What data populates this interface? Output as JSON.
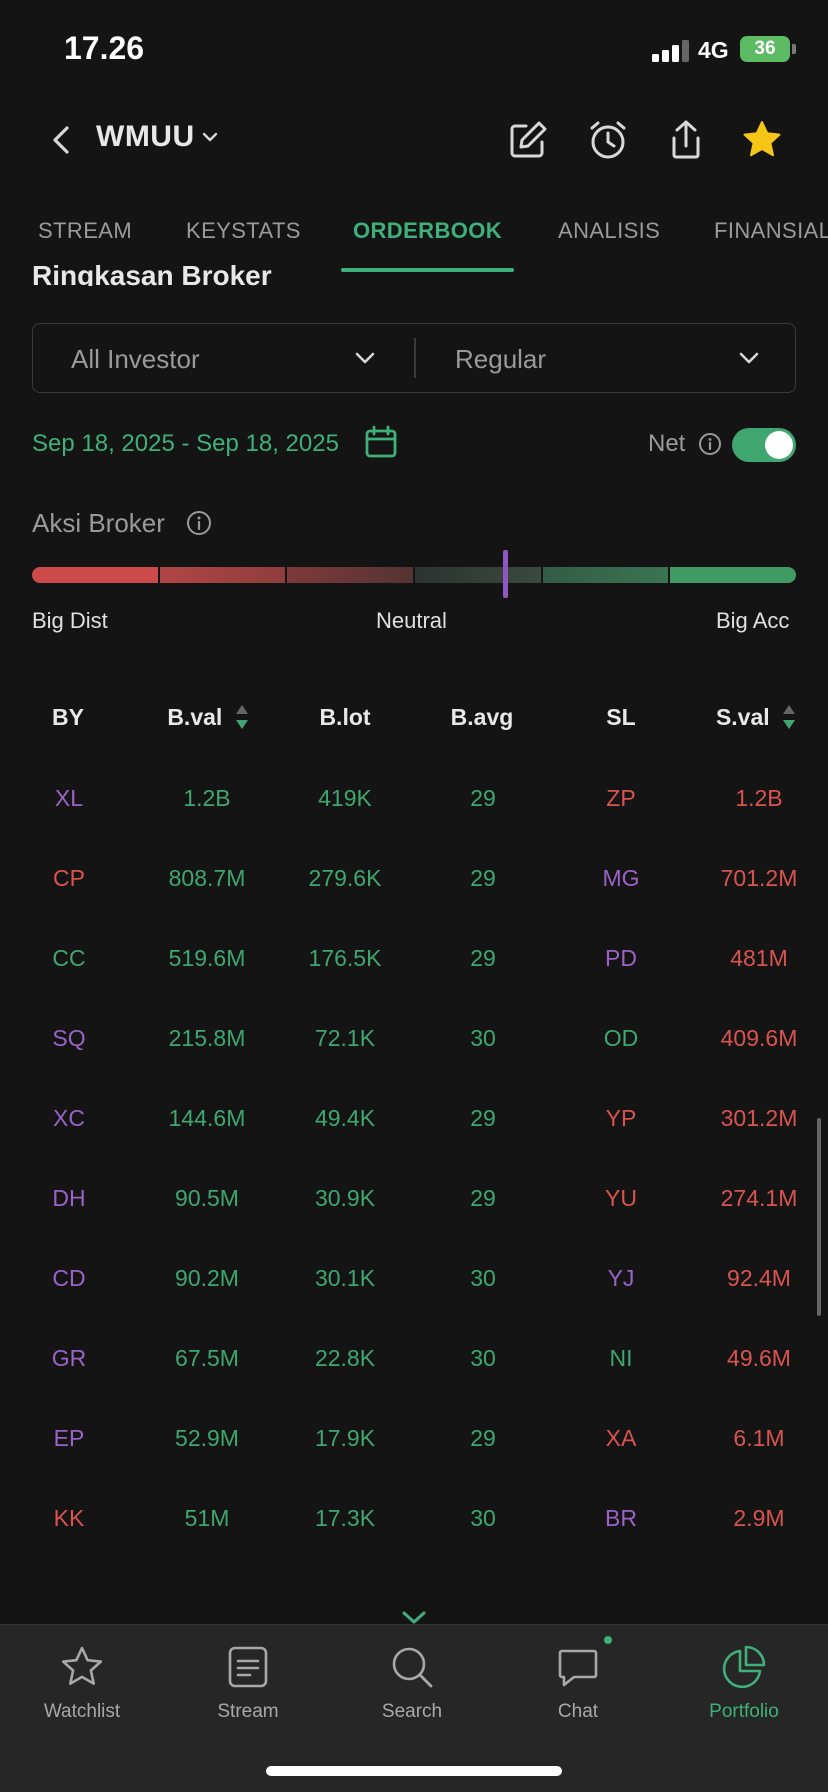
{
  "status_bar": {
    "time": "17.26",
    "network": "4G",
    "battery": "36"
  },
  "header": {
    "ticker": "WMUU"
  },
  "tabs": [
    {
      "label": "STREAM",
      "active": false
    },
    {
      "label": "KEYSTATS",
      "active": false
    },
    {
      "label": "ORDERBOOK",
      "active": true
    },
    {
      "label": "ANALISIS",
      "active": false
    },
    {
      "label": "FINANSIAL",
      "active": false
    }
  ],
  "section_title": "Ringkasan Broker",
  "filters": {
    "investor": "All Investor",
    "market": "Regular"
  },
  "date_range": "Sep 18, 2025 - Sep 18, 2025",
  "net": {
    "label": "Net",
    "enabled": true
  },
  "aksi": {
    "label": "Aksi Broker",
    "left_label": "Big Dist",
    "mid_label": "Neutral",
    "right_label": "Big Acc",
    "gauge_level": 0.62
  },
  "table": {
    "headers": {
      "by": "BY",
      "bval": "B.val",
      "blot": "B.lot",
      "bavg": "B.avg",
      "sl": "SL",
      "sval": "S.val"
    },
    "rows": [
      {
        "by": "XL",
        "by_color": "purple",
        "bval": "1.2B",
        "blot": "419K",
        "bavg": "29",
        "sl": "ZP",
        "sl_color": "red",
        "sval": "1.2B"
      },
      {
        "by": "CP",
        "by_color": "red",
        "bval": "808.7M",
        "blot": "279.6K",
        "bavg": "29",
        "sl": "MG",
        "sl_color": "purple",
        "sval": "701.2M"
      },
      {
        "by": "CC",
        "by_color": "green",
        "bval": "519.6M",
        "blot": "176.5K",
        "bavg": "29",
        "sl": "PD",
        "sl_color": "purple",
        "sval": "481M"
      },
      {
        "by": "SQ",
        "by_color": "purple",
        "bval": "215.8M",
        "blot": "72.1K",
        "bavg": "30",
        "sl": "OD",
        "sl_color": "green",
        "sval": "409.6M"
      },
      {
        "by": "XC",
        "by_color": "purple",
        "bval": "144.6M",
        "blot": "49.4K",
        "bavg": "29",
        "sl": "YP",
        "sl_color": "red",
        "sval": "301.2M"
      },
      {
        "by": "DH",
        "by_color": "purple",
        "bval": "90.5M",
        "blot": "30.9K",
        "bavg": "29",
        "sl": "YU",
        "sl_color": "red",
        "sval": "274.1M"
      },
      {
        "by": "CD",
        "by_color": "purple",
        "bval": "90.2M",
        "blot": "30.1K",
        "bavg": "30",
        "sl": "YJ",
        "sl_color": "purple",
        "sval": "92.4M"
      },
      {
        "by": "GR",
        "by_color": "purple",
        "bval": "67.5M",
        "blot": "22.8K",
        "bavg": "30",
        "sl": "NI",
        "sl_color": "green",
        "sval": "49.6M"
      },
      {
        "by": "EP",
        "by_color": "purple",
        "bval": "52.9M",
        "blot": "17.9K",
        "bavg": "29",
        "sl": "XA",
        "sl_color": "red",
        "sval": "6.1M"
      },
      {
        "by": "KK",
        "by_color": "red",
        "bval": "51M",
        "blot": "17.3K",
        "bavg": "30",
        "sl": "BR",
        "sl_color": "purple",
        "sval": "2.9M"
      }
    ]
  },
  "bottom_nav": [
    {
      "label": "Watchlist",
      "icon": "star-outline-icon",
      "active": false
    },
    {
      "label": "Stream",
      "icon": "stream-icon",
      "active": false
    },
    {
      "label": "Search",
      "icon": "search-icon",
      "active": false
    },
    {
      "label": "Chat",
      "icon": "chat-icon",
      "active": false
    },
    {
      "label": "Portfolio",
      "icon": "pie-chart-icon",
      "active": true
    }
  ],
  "colors": {
    "accent_green": "#3fb07a",
    "sell_red": "#d9534f",
    "broker_purple": "#9b62c8",
    "background": "#141414"
  }
}
